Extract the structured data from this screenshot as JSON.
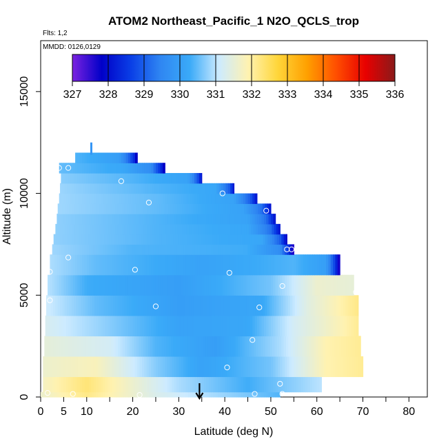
{
  "chart_data": {
    "type": "heatmap",
    "title": "ATOM2 Northeast_Pacific_1 N2O_QCLS_trop",
    "flights_label": "Flts: 1,2",
    "dates_label": "MMDD: 0126,0129",
    "xlabel": "Latitude (deg N)",
    "ylabel": "Altitude (m)",
    "xlim": [
      0,
      84
    ],
    "ylim": [
      0,
      17500
    ],
    "x_ticks": [
      0,
      5,
      10,
      20,
      30,
      40,
      50,
      60,
      70,
      80
    ],
    "y_ticks": [
      0,
      5000,
      10000,
      15000
    ],
    "colorbar": {
      "ticks": [
        327,
        328,
        329,
        330,
        331,
        332,
        333,
        334,
        335,
        336
      ],
      "min": 327,
      "max": 336,
      "colors": [
        "#7b22e0",
        "#0000c8",
        "#0a3fe6",
        "#2f86f2",
        "#3aaaf8",
        "#cdebff",
        "#fff2b0",
        "#ffd63a",
        "#ffa000",
        "#ff4e00",
        "#e80000",
        "#8a1a1a"
      ]
    },
    "curtain_rows": [
      {
        "z0": 0,
        "z1": 250,
        "lat_min": 0,
        "lat_max": 52,
        "values": [
          [
            0,
            331.6
          ],
          [
            10,
            332.2
          ],
          [
            25,
            331.3
          ],
          [
            40,
            330.8
          ],
          [
            52,
            330.4
          ]
        ]
      },
      {
        "z0": 250,
        "z1": 1000,
        "lat_min": 0.5,
        "lat_max": 61,
        "values": [
          [
            0,
            331.7
          ],
          [
            10,
            332.3
          ],
          [
            20,
            331.6
          ],
          [
            30,
            330.9
          ],
          [
            45,
            330.3
          ],
          [
            61,
            331.0
          ]
        ]
      },
      {
        "z0": 1000,
        "z1": 2000,
        "lat_min": 0.5,
        "lat_max": 70,
        "values": [
          [
            0,
            331.6
          ],
          [
            12,
            331.8
          ],
          [
            25,
            330.7
          ],
          [
            35,
            330.1
          ],
          [
            50,
            330.6
          ],
          [
            62,
            331.9
          ],
          [
            70,
            332.1
          ]
        ]
      },
      {
        "z0": 2000,
        "z1": 3000,
        "lat_min": 0.8,
        "lat_max": 69.5,
        "values": [
          [
            0,
            331.5
          ],
          [
            15,
            331.2
          ],
          [
            25,
            330.4
          ],
          [
            38,
            330.0
          ],
          [
            52,
            330.9
          ],
          [
            62,
            331.9
          ],
          [
            69.5,
            332.1
          ]
        ]
      },
      {
        "z0": 3000,
        "z1": 4000,
        "lat_min": 1,
        "lat_max": 69,
        "values": [
          [
            0,
            331.3
          ],
          [
            15,
            330.7
          ],
          [
            30,
            330.1
          ],
          [
            45,
            330.2
          ],
          [
            55,
            331.2
          ],
          [
            69,
            332.1
          ]
        ]
      },
      {
        "z0": 4000,
        "z1": 5000,
        "lat_min": 1.2,
        "lat_max": 69,
        "values": [
          [
            0,
            331.2
          ],
          [
            12,
            330.5
          ],
          [
            30,
            330.0
          ],
          [
            48,
            330.2
          ],
          [
            58,
            331.4
          ],
          [
            69,
            332.2
          ]
        ]
      },
      {
        "z0": 5000,
        "z1": 6000,
        "lat_min": 1.5,
        "lat_max": 68,
        "values": [
          [
            0,
            331.1
          ],
          [
            10,
            330.3
          ],
          [
            30,
            330.0
          ],
          [
            50,
            330.6
          ],
          [
            60,
            331.6
          ],
          [
            68,
            331.5
          ]
        ]
      },
      {
        "z0": 6000,
        "z1": 7000,
        "lat_min": 2,
        "lat_max": 65,
        "values": [
          [
            0,
            331.0
          ],
          [
            12,
            330.5
          ],
          [
            35,
            330.1
          ],
          [
            55,
            330.4
          ],
          [
            62,
            330.0
          ],
          [
            64,
            328.6
          ],
          [
            65,
            327.4
          ]
        ]
      },
      {
        "z0": 7000,
        "z1": 7500,
        "lat_min": 2.5,
        "lat_max": 55,
        "values": [
          [
            0,
            330.9
          ],
          [
            20,
            330.4
          ],
          [
            45,
            330.3
          ],
          [
            52,
            329.6
          ],
          [
            54,
            328.4
          ],
          [
            55,
            327.4
          ]
        ]
      },
      {
        "z0": 7500,
        "z1": 8000,
        "lat_min": 2.8,
        "lat_max": 53.5,
        "values": [
          [
            0,
            330.8
          ],
          [
            25,
            330.4
          ],
          [
            48,
            330.2
          ],
          [
            52,
            329.0
          ],
          [
            53.5,
            327.8
          ]
        ]
      },
      {
        "z0": 8000,
        "z1": 8500,
        "lat_min": 3.2,
        "lat_max": 52,
        "values": [
          [
            0,
            330.8
          ],
          [
            25,
            330.4
          ],
          [
            45,
            330.2
          ],
          [
            50,
            329.2
          ],
          [
            52,
            328.0
          ]
        ]
      },
      {
        "z0": 8500,
        "z1": 9000,
        "lat_min": 3.5,
        "lat_max": 51,
        "values": [
          [
            0,
            330.8
          ],
          [
            25,
            330.4
          ],
          [
            45,
            330.1
          ],
          [
            49,
            329.2
          ],
          [
            51,
            328.0
          ]
        ]
      },
      {
        "z0": 9000,
        "z1": 9500,
        "lat_min": 3.7,
        "lat_max": 50,
        "values": [
          [
            0,
            330.9
          ],
          [
            25,
            330.5
          ],
          [
            44,
            330.1
          ],
          [
            48,
            329.2
          ],
          [
            50,
            328.0
          ]
        ]
      },
      {
        "z0": 9500,
        "z1": 10000,
        "lat_min": 4,
        "lat_max": 47,
        "values": [
          [
            0,
            330.9
          ],
          [
            25,
            330.5
          ],
          [
            42,
            330.1
          ],
          [
            45.5,
            329.0
          ],
          [
            47,
            328.0
          ]
        ]
      },
      {
        "z0": 10000,
        "z1": 10500,
        "lat_min": 4.2,
        "lat_max": 42,
        "values": [
          [
            0,
            330.9
          ],
          [
            25,
            330.4
          ],
          [
            38,
            330.2
          ],
          [
            41,
            329.0
          ],
          [
            42,
            328.0
          ]
        ]
      },
      {
        "z0": 10500,
        "z1": 11000,
        "lat_min": 4.4,
        "lat_max": 35,
        "values": [
          [
            0,
            330.8
          ],
          [
            20,
            330.4
          ],
          [
            32,
            330.1
          ],
          [
            34,
            329.0
          ],
          [
            35,
            328.0
          ]
        ]
      },
      {
        "z0": 11000,
        "z1": 11500,
        "lat_min": 4,
        "lat_max": 27,
        "values": [
          [
            0,
            330.6
          ],
          [
            18,
            330.2
          ],
          [
            24,
            329.6
          ],
          [
            26,
            328.5
          ],
          [
            27,
            327.6
          ]
        ]
      },
      {
        "z0": 11500,
        "z1": 12000,
        "lat_min": 7.5,
        "lat_max": 21,
        "values": [
          [
            7.5,
            330.4
          ],
          [
            17,
            330.0
          ],
          [
            19,
            329.2
          ],
          [
            20.3,
            328.4
          ],
          [
            21,
            327.5
          ]
        ]
      }
    ],
    "spike": {
      "lat": 11,
      "z0": 11900,
      "z1": 12500,
      "value": 329.8
    },
    "obs_points": [
      [
        1.5,
        200
      ],
      [
        7,
        150
      ],
      [
        21.5,
        100
      ],
      [
        46.5,
        150
      ],
      [
        52.5,
        150
      ],
      [
        52,
        650
      ],
      [
        40.5,
        1450
      ],
      [
        46,
        2800
      ],
      [
        47.5,
        4400
      ],
      [
        25,
        4450
      ],
      [
        2,
        4750
      ],
      [
        52.5,
        5450
      ],
      [
        68.5,
        5150
      ],
      [
        2,
        6150
      ],
      [
        20.5,
        6250
      ],
      [
        41,
        6100
      ],
      [
        6,
        6850
      ],
      [
        53.5,
        7250
      ],
      [
        54.5,
        7250
      ],
      [
        49,
        9150
      ],
      [
        23.5,
        9550
      ],
      [
        39.5,
        10000
      ],
      [
        17.5,
        10600
      ],
      [
        4,
        11250
      ],
      [
        6,
        11250
      ]
    ],
    "arrow_lat": 34.5
  }
}
